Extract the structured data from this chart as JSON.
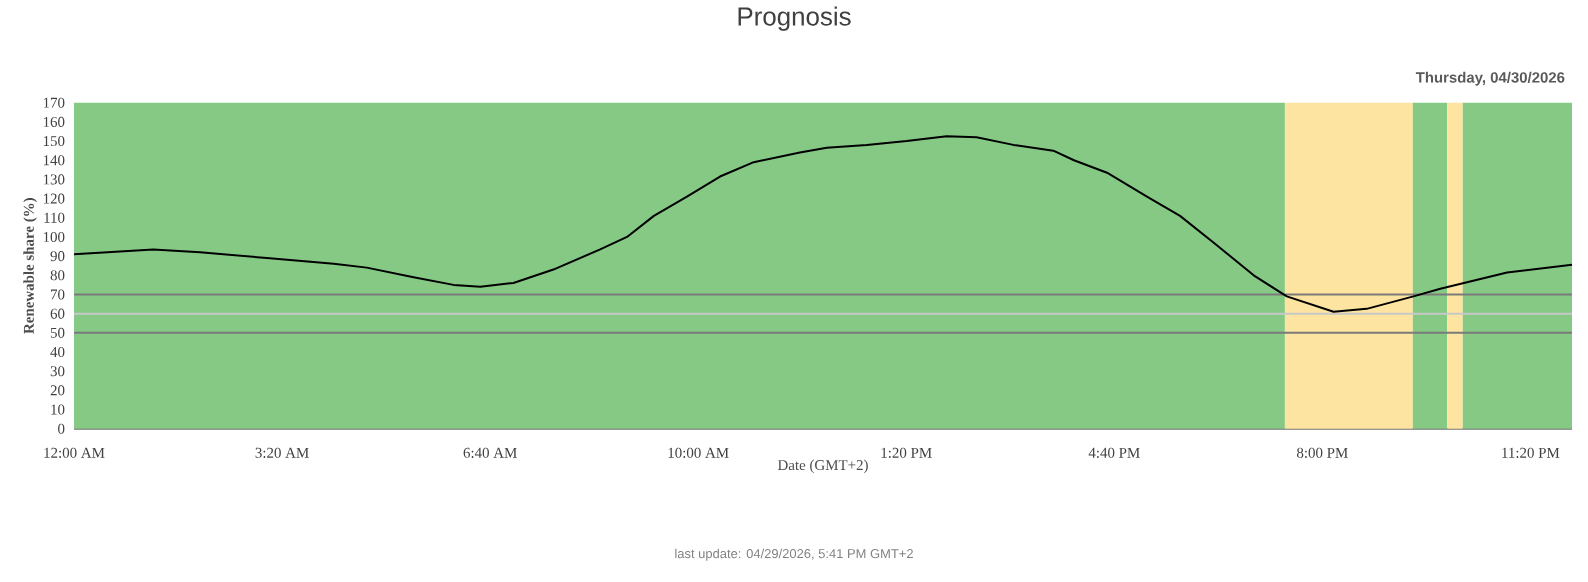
{
  "chart_data": {
    "type": "line",
    "title": "Prognosis",
    "subtitle": "Thursday, 04/30/2026",
    "xlabel": "Date (GMT+2)",
    "ylabel": "Renewable share (%)",
    "annotations": [
      "last update: 04/29/2026, 5:41 PM GMT+2"
    ],
    "xlim": [
      0,
      24
    ],
    "ylim": [
      0,
      170
    ],
    "xticks": [
      {
        "value": 0,
        "label": "12:00 AM"
      },
      {
        "value": 3.333,
        "label": "3:20 AM"
      },
      {
        "value": 6.667,
        "label": "6:40 AM"
      },
      {
        "value": 10,
        "label": "10:00 AM"
      },
      {
        "value": 13.333,
        "label": "1:20 PM"
      },
      {
        "value": 16.667,
        "label": "4:40 PM"
      },
      {
        "value": 20,
        "label": "8:00 PM"
      },
      {
        "value": 23.333,
        "label": "11:20 PM"
      }
    ],
    "yticks": [
      0,
      10,
      20,
      30,
      40,
      50,
      60,
      70,
      80,
      90,
      100,
      110,
      120,
      130,
      140,
      150,
      160,
      170
    ],
    "marker": "none",
    "legend": false,
    "series": [
      {
        "color": "#000000",
        "x": [
          0,
          1.27,
          2.02,
          3.09,
          4.16,
          4.69,
          5.44,
          6.08,
          6.51,
          7.04,
          7.68,
          8.43,
          8.86,
          9.29,
          9.82,
          10.35,
          10.89,
          11.63,
          12.06,
          12.7,
          13.34,
          13.98,
          14.46,
          15.05,
          15.69,
          16.02,
          16.55,
          17.19,
          17.72,
          18.26,
          18.9,
          19.43,
          20.18,
          20.71,
          21.46,
          21.89,
          22.96,
          24
        ],
        "values": [
          91,
          93.5,
          92,
          89,
          86,
          84,
          79,
          75,
          74,
          76,
          83,
          93.5,
          100,
          111,
          121,
          131.5,
          139,
          144,
          146.5,
          148,
          150,
          152.5,
          152,
          148,
          145,
          140,
          133.5,
          121,
          111,
          97,
          80,
          69,
          61,
          62.5,
          69,
          73,
          81.5,
          85.5
        ]
      }
    ],
    "bands": [
      {
        "axis": "x",
        "from": 0,
        "to": 19.4,
        "color": "#85c985"
      },
      {
        "axis": "x",
        "from": 19.4,
        "to": 21.45,
        "color": "#fde4a0"
      },
      {
        "axis": "x",
        "from": 21.45,
        "to": 22,
        "color": "#85c985"
      },
      {
        "axis": "x",
        "from": 22,
        "to": 22.25,
        "color": "#fde4a0"
      },
      {
        "axis": "x",
        "from": 22.25,
        "to": 24,
        "color": "#85c985"
      }
    ],
    "ref_lines": [
      {
        "axis": "y",
        "value": 70,
        "color": "#7a7a7a"
      },
      {
        "axis": "y",
        "value": 60,
        "color": "#c8c8c8"
      },
      {
        "axis": "y",
        "value": 50,
        "color": "#7a7a7a"
      }
    ]
  }
}
